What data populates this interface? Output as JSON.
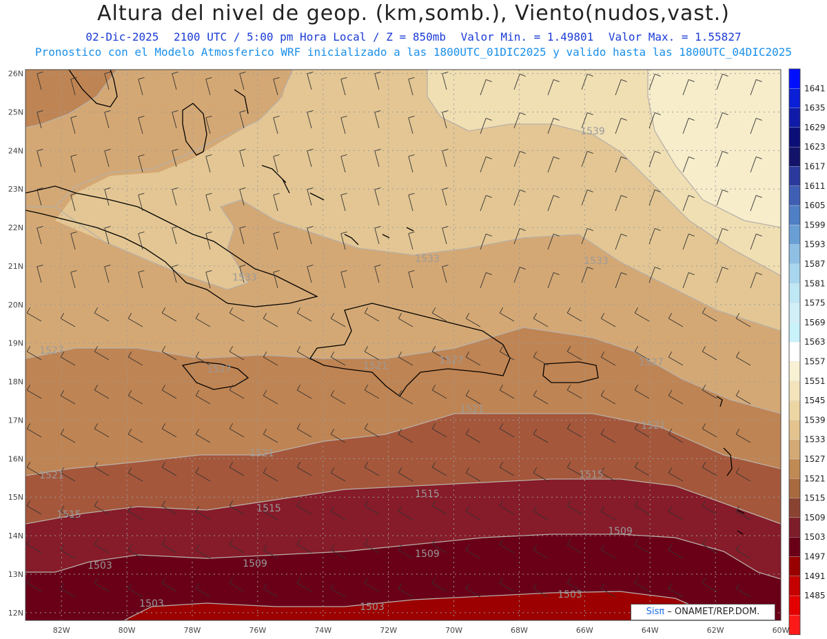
{
  "header": {
    "title": "Altura del nivel de geop. (km,somb.), Viento(nudos,vast.)",
    "date": "02-Dic-2025",
    "time": "2100 UTC / 5:00 pm Hora Local / Z = 850mb",
    "min": "Valor Min. = 1.49801",
    "max": "Valor Max. = 1.55827",
    "model_line": "Pronostico con el Modelo Atmosferico WRF inicializado a las 1800UTC_01DIC2025 y valido hasta las  1800UTC_04DIC2025"
  },
  "axes": {
    "lon_labels": [
      "82W",
      "80W",
      "78W",
      "76W",
      "74W",
      "72W",
      "70W",
      "68W",
      "66W",
      "64W",
      "62W",
      "60W"
    ],
    "lat_labels": [
      "26N",
      "25N",
      "24N",
      "23N",
      "22N",
      "21N",
      "20N",
      "19N",
      "18N",
      "17N",
      "16N",
      "15N",
      "14N",
      "13N",
      "12N"
    ],
    "lon_range": [
      -83.1,
      -60.0
    ],
    "lat_range": [
      11.8,
      26.1
    ]
  },
  "colorbar": {
    "levels": [
      "1641",
      "1635",
      "1629",
      "1623",
      "1617",
      "1611",
      "1605",
      "1599",
      "1593",
      "1587",
      "1581",
      "1575",
      "1569",
      "1563",
      "1557",
      "1551",
      "1545",
      "1539",
      "1533",
      "1527",
      "1521",
      "1515",
      "1509",
      "1503",
      "1497",
      "1491",
      "1485"
    ],
    "colors": [
      "#0010ff",
      "#0a1fd6",
      "#101aa8",
      "#0c0e78",
      "#14136a",
      "#2b3a9c",
      "#3f5fb4",
      "#4f7fc4",
      "#6a9fd6",
      "#8fc0e4",
      "#a8d6ee",
      "#bfe7f4",
      "#d2eff8",
      "#c9f2fb",
      "#ffffff",
      "#f8f1d3",
      "#f3e4bc",
      "#ecd6a4",
      "#e3c38e",
      "#d3a975",
      "#c08a55",
      "#a86a3e",
      "#8a4331",
      "#7d1d2a",
      "#6a0018",
      "#990000",
      "#c40000",
      "#e30000",
      "#ff1a1a"
    ]
  },
  "contours": {
    "labels": [
      "1539",
      "1533",
      "1533",
      "1533",
      "1527",
      "1527",
      "1527",
      "1527",
      "1521",
      "1521",
      "1521",
      "1521",
      "1521",
      "1515",
      "1515",
      "1515",
      "1515",
      "1509",
      "1509",
      "1509",
      "1503",
      "1503",
      "1503"
    ]
  },
  "colors": {
    "c1503": "#6a0018",
    "c1509": "#861b29",
    "c1515": "#a5573b",
    "c1521": "#bf8453",
    "c1527": "#d4a874",
    "c1533": "#e3c693",
    "c1539": "#f0dfb3",
    "c1545": "#f7edcb",
    "c1497": "#9c0000"
  },
  "credit": {
    "brand": "Sisπ",
    "text": "– ONAMET/REP.DOM."
  }
}
